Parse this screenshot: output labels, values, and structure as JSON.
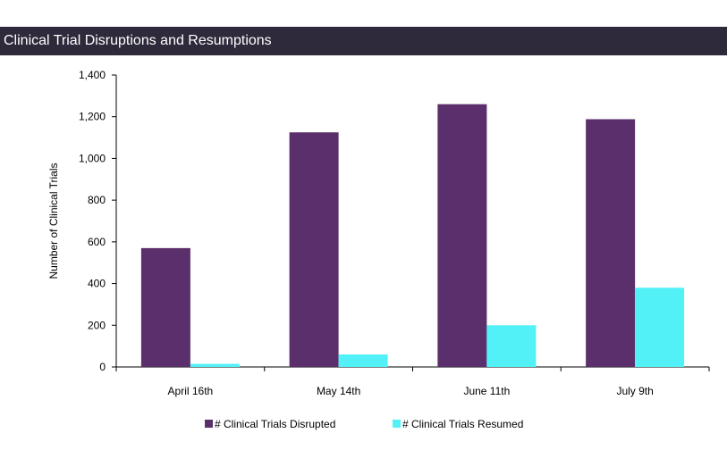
{
  "header": {
    "title": "Clinical Trial Disruptions and Resumptions"
  },
  "chart_data": {
    "type": "bar",
    "title": "",
    "xlabel": "",
    "ylabel": "Number of Clinical Trials",
    "categories": [
      "April 16th",
      "May 14th",
      "June 11th",
      "July 9th"
    ],
    "series": [
      {
        "name": "# Clinical Trials Disrupted",
        "color": "#5b2f6b",
        "values": [
          570,
          1125,
          1260,
          1188
        ]
      },
      {
        "name": "# Clinical Trials Resumed",
        "color": "#52f1f7",
        "values": [
          15,
          60,
          200,
          380
        ]
      }
    ],
    "ylim": [
      0,
      1400
    ],
    "yticks": [
      0,
      200,
      400,
      600,
      800,
      1000,
      1200,
      1400
    ],
    "ytick_labels": [
      "0",
      "200",
      "400",
      "600",
      "800",
      "1,000",
      "1,200",
      "1,400"
    ],
    "grid": false,
    "legend": "bottom"
  }
}
